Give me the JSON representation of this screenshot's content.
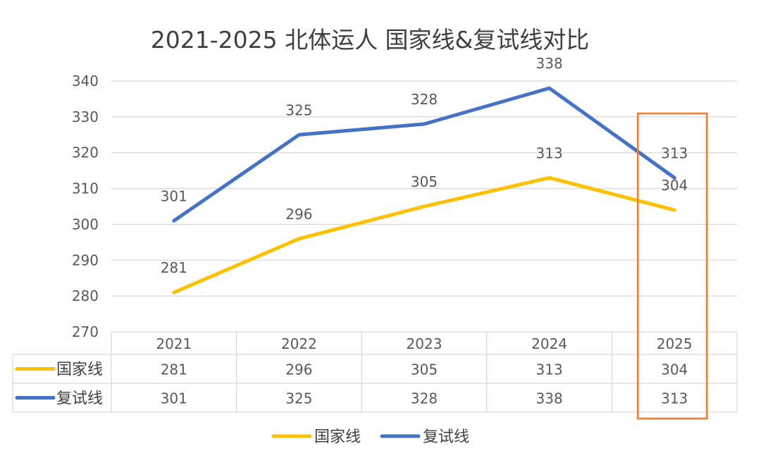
{
  "chart_data": {
    "type": "line",
    "title": "2021-2025 北体运人 国家线&复试线对比",
    "categories": [
      "2021",
      "2022",
      "2023",
      "2024",
      "2025"
    ],
    "ylim": [
      270,
      340
    ],
    "yticks": [
      270,
      280,
      290,
      300,
      310,
      320,
      330,
      340
    ],
    "grid": true,
    "legend_position": "bottom",
    "series": [
      {
        "name": "国家线",
        "color": "#FFC000",
        "values": [
          281,
          296,
          305,
          313,
          304
        ]
      },
      {
        "name": "复试线",
        "color": "#4472C4",
        "values": [
          301,
          325,
          328,
          338,
          313
        ]
      }
    ],
    "data_table": true,
    "highlight": {
      "category": "2025",
      "color": "#ED7D31"
    }
  }
}
